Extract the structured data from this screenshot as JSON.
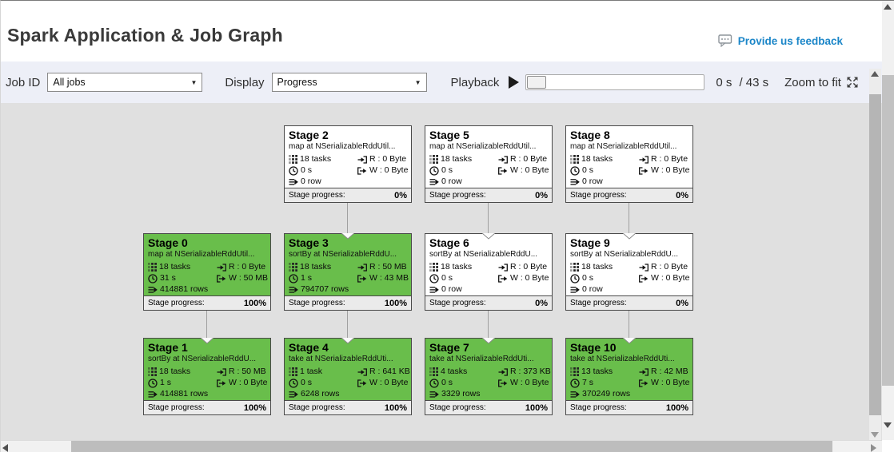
{
  "header": {
    "title": "Spark Application & Job Graph",
    "feedback_label": "Provide us feedback"
  },
  "toolbar": {
    "job_id_label": "Job ID",
    "job_id_value": "All jobs",
    "display_label": "Display",
    "display_value": "Progress",
    "playback_label": "Playback",
    "elapsed": "0 s",
    "total": "/ 43 s",
    "zoom_to_fit_label": "Zoom to fit"
  },
  "colors": {
    "completed_green": "#69be4b",
    "pending_white": "#ffffff",
    "accent_blue": "#1b86c8",
    "canvas_gray": "#e0e0e0"
  },
  "graph": {
    "progress_label": "Stage progress:",
    "stages": [
      {
        "id": 0,
        "title": "Stage 0",
        "desc": "map at NSerializableRddUtil...",
        "tasks": "18 tasks",
        "read": "R : 0 Byte",
        "time": "31 s",
        "write": "W : 50 MB",
        "rows": "414881 rows",
        "progress": "100%",
        "state": "completed",
        "col": 0,
        "row": 1,
        "incoming": false
      },
      {
        "id": 1,
        "title": "Stage 1",
        "desc": "sortBy at NSerializableRddU...",
        "tasks": "18 tasks",
        "read": "R : 50 MB",
        "time": "1 s",
        "write": "W : 0 Byte",
        "rows": "414881 rows",
        "progress": "100%",
        "state": "completed",
        "col": 0,
        "row": 2,
        "incoming": true
      },
      {
        "id": 2,
        "title": "Stage 2",
        "desc": "map at NSerializableRddUtil...",
        "tasks": "18 tasks",
        "read": "R : 0 Byte",
        "time": "0 s",
        "write": "W : 0 Byte",
        "rows": "0 row",
        "progress": "0%",
        "state": "pending",
        "col": 1,
        "row": 0,
        "incoming": false
      },
      {
        "id": 3,
        "title": "Stage 3",
        "desc": "sortBy at NSerializableRddU...",
        "tasks": "18 tasks",
        "read": "R : 50 MB",
        "time": "1 s",
        "write": "W : 43 MB",
        "rows": "794707 rows",
        "progress": "100%",
        "state": "completed",
        "col": 1,
        "row": 1,
        "incoming": true
      },
      {
        "id": 4,
        "title": "Stage 4",
        "desc": "take at NSerializableRddUti...",
        "tasks": "1 task",
        "read": "R : 641 KB",
        "time": "0 s",
        "write": "W : 0 Byte",
        "rows": "6248 rows",
        "progress": "100%",
        "state": "completed",
        "col": 1,
        "row": 2,
        "incoming": true
      },
      {
        "id": 5,
        "title": "Stage 5",
        "desc": "map at NSerializableRddUtil...",
        "tasks": "18 tasks",
        "read": "R : 0 Byte",
        "time": "0 s",
        "write": "W : 0 Byte",
        "rows": "0 row",
        "progress": "0%",
        "state": "pending",
        "col": 2,
        "row": 0,
        "incoming": false
      },
      {
        "id": 6,
        "title": "Stage 6",
        "desc": "sortBy at NSerializableRddU...",
        "tasks": "18 tasks",
        "read": "R : 0 Byte",
        "time": "0 s",
        "write": "W : 0 Byte",
        "rows": "0 row",
        "progress": "0%",
        "state": "pending",
        "col": 2,
        "row": 1,
        "incoming": true
      },
      {
        "id": 7,
        "title": "Stage 7",
        "desc": "take at NSerializableRddUti...",
        "tasks": "4 tasks",
        "read": "R : 373 KB",
        "time": "0 s",
        "write": "W : 0 Byte",
        "rows": "3329 rows",
        "progress": "100%",
        "state": "completed",
        "col": 2,
        "row": 2,
        "incoming": true
      },
      {
        "id": 8,
        "title": "Stage 8",
        "desc": "map at NSerializableRddUtil...",
        "tasks": "18 tasks",
        "read": "R : 0 Byte",
        "time": "0 s",
        "write": "W : 0 Byte",
        "rows": "0 row",
        "progress": "0%",
        "state": "pending",
        "col": 3,
        "row": 0,
        "incoming": false
      },
      {
        "id": 9,
        "title": "Stage 9",
        "desc": "sortBy at NSerializableRddU...",
        "tasks": "18 tasks",
        "read": "R : 0 Byte",
        "time": "0 s",
        "write": "W : 0 Byte",
        "rows": "0 row",
        "progress": "0%",
        "state": "pending",
        "col": 3,
        "row": 1,
        "incoming": true
      },
      {
        "id": 10,
        "title": "Stage 10",
        "desc": "take at NSerializableRddUti...",
        "tasks": "13 tasks",
        "read": "R : 42 MB",
        "time": "7 s",
        "write": "W : 0 Byte",
        "rows": "370249 rows",
        "progress": "100%",
        "state": "completed",
        "col": 3,
        "row": 2,
        "incoming": true
      }
    ],
    "edges": [
      [
        2,
        3
      ],
      [
        5,
        6
      ],
      [
        8,
        9
      ],
      [
        0,
        1
      ],
      [
        3,
        4
      ],
      [
        6,
        7
      ],
      [
        9,
        10
      ]
    ]
  }
}
